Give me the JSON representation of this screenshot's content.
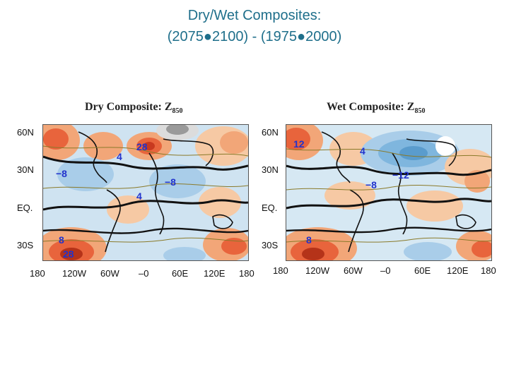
{
  "slide": {
    "title_line1": "Dry/Wet Composites:",
    "title_line2": "(2075●2100) - (1975●2000)"
  },
  "panels": [
    {
      "title": "Dry Composite: Z",
      "subscript": "850",
      "lat_labels": [
        "60N",
        "30N",
        "EQ.",
        "30S"
      ],
      "lon_labels": [
        "180",
        "120W",
        "60W",
        "–0",
        "60E",
        "120E",
        "180"
      ],
      "contour_labels": [
        "4",
        "28",
        "−8",
        "−8",
        "4",
        "8",
        "28"
      ]
    },
    {
      "title": "Wet Composite: Z",
      "subscript": "850",
      "lat_labels": [
        "60N",
        "30N",
        "EQ.",
        "30S"
      ],
      "lon_labels": [
        "180",
        "120W",
        "60W",
        "–0",
        "60E",
        "120E",
        "180"
      ],
      "contour_labels": [
        "12",
        "4",
        "−12",
        "−8",
        "8"
      ]
    }
  ],
  "colors": {
    "title": "#1f6f8b",
    "warm": "#e8643c",
    "cool": "#7fb6de",
    "contour_label": "#2233cc"
  }
}
